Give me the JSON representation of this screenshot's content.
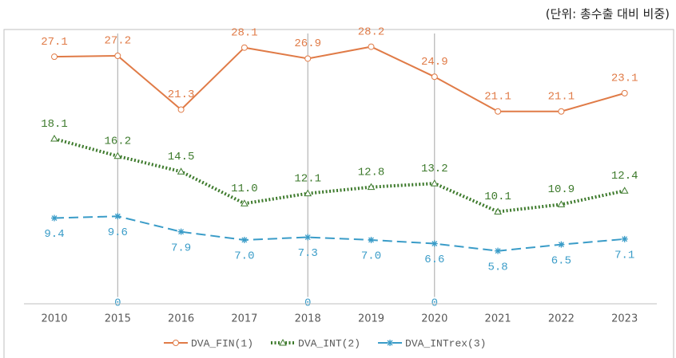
{
  "chart_data": {
    "type": "line",
    "unit_note": "(단위: 총수출 대비 비중)",
    "categories": [
      "2010",
      "2015",
      "2016",
      "2017",
      "2018",
      "2019",
      "2020",
      "2021",
      "2022",
      "2023"
    ],
    "ylim": [
      0,
      30
    ],
    "series": [
      {
        "name": "DVA_FIN(1)",
        "color": "#e07b47",
        "marker": "circle",
        "dash": "solid",
        "values": [
          27.1,
          27.2,
          21.3,
          28.1,
          26.9,
          28.2,
          24.9,
          21.1,
          21.1,
          23.1
        ],
        "value_labels": [
          "27.1",
          "27.2",
          "21.3",
          "28.1",
          "26.9",
          "28.2",
          "24.9",
          "21.1",
          "21.1",
          "23.1"
        ]
      },
      {
        "name": "DVA_INT(2)",
        "color": "#3d7a2c",
        "marker": "triangle",
        "dash": "dotted",
        "values": [
          18.1,
          16.2,
          14.5,
          11.0,
          12.1,
          12.8,
          13.2,
          10.1,
          10.9,
          12.4
        ],
        "value_labels": [
          "18.1",
          "16.2",
          "14.5",
          "11.0",
          "12.1",
          "12.8",
          "13.2",
          "10.1",
          "10.9",
          "12.4"
        ]
      },
      {
        "name": "DVA_INTrex(3)",
        "color": "#3a9cc8",
        "marker": "star",
        "dash": "dashed",
        "values": [
          9.4,
          9.6,
          7.9,
          7.0,
          7.3,
          7.0,
          6.6,
          5.8,
          6.5,
          7.1
        ],
        "value_labels": [
          "9.4",
          "9.6",
          "7.9",
          "7.0",
          "7.3",
          "7.0",
          "6.6",
          "5.8",
          "6.5",
          "7.1"
        ]
      }
    ],
    "reference_lines": [
      {
        "x": "2015",
        "value": 0
      },
      {
        "x": "2018",
        "value": 0
      },
      {
        "x": "2020",
        "value": 0
      }
    ],
    "legend": "bottom"
  }
}
